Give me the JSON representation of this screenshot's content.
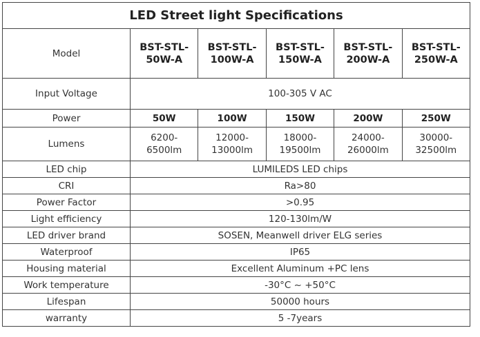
{
  "title": "LED Street light  Specifications",
  "header": {
    "label": "Model",
    "models": [
      "BST-STL-\n50W-A",
      "BST-STL-\n100W-A",
      "BST-STL-\n150W-A",
      "BST-STL-\n200W-A",
      "BST-STL-\n250W-A"
    ]
  },
  "rows": [
    {
      "label": "Input Voltage",
      "values": [
        "100-305 V AC"
      ]
    },
    {
      "label": "Power",
      "values": [
        "50W",
        "100W",
        "150W",
        "200W",
        "250W"
      ]
    },
    {
      "label": "Lumens",
      "values": [
        "6200-\n6500lm",
        "12000-\n13000lm",
        "18000-\n19500lm",
        "24000-\n26000lm",
        "30000-\n32500lm"
      ]
    },
    {
      "label": "LED chip",
      "values": [
        "LUMILEDS LED chips"
      ]
    },
    {
      "label": "CRI",
      "values": [
        "Ra>80"
      ]
    },
    {
      "label": "Power Factor",
      "values": [
        ">0.95"
      ]
    },
    {
      "label": "Light efficiency",
      "values": [
        "120-130lm/W"
      ]
    },
    {
      "label": "LED driver brand",
      "values": [
        "SOSEN, Meanwell driver ELG series"
      ]
    },
    {
      "label": "Waterproof",
      "values": [
        "IP65"
      ]
    },
    {
      "label": "Housing material",
      "values": [
        "Excellent Aluminum +PC lens"
      ]
    },
    {
      "label": "Work temperature",
      "values": [
        "-30°C ~ +50°C"
      ]
    },
    {
      "label": "Lifespan",
      "values": [
        "50000 hours"
      ]
    },
    {
      "label": "warranty",
      "values": [
        "5 -7years"
      ]
    }
  ]
}
